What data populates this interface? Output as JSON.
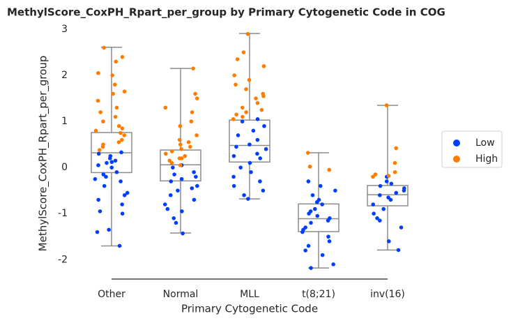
{
  "chart_data": {
    "type": "box-strip",
    "title": "MethylScore_CoxPH_Rpart_per_group by Primary Cytogenetic Code in COG",
    "x_label": "Primary Cytogenetic Code",
    "y_label": "MethylScore_CoxPH_Rpart_per_group",
    "categories": [
      "Other",
      "Normal",
      "MLL",
      "t(8;21)",
      "inv(16)"
    ],
    "ylim": [
      -2.42,
      3.05
    ],
    "yticks": [
      -2,
      -1,
      0,
      1,
      2,
      3
    ],
    "legend": "right",
    "box_color": "#8c8c8c",
    "boxes": [
      {
        "whislo": -1.7,
        "q1": -0.11,
        "med": 0.32,
        "q3": 0.76,
        "whishi": 2.61
      },
      {
        "whislo": -1.42,
        "q1": -0.29,
        "med": 0.06,
        "q3": 0.38,
        "whishi": 2.15
      },
      {
        "whislo": -0.68,
        "q1": 0.12,
        "med": 0.48,
        "q3": 1.03,
        "whishi": 2.91
      },
      {
        "whislo": -2.18,
        "q1": -1.39,
        "med": -1.11,
        "q3": -0.79,
        "whishi": 0.32
      },
      {
        "whislo": -1.79,
        "q1": -0.83,
        "med": -0.59,
        "q3": -0.39,
        "whishi": 1.35
      }
    ],
    "series": [
      {
        "name": "Low",
        "color": "#023eff",
        "values": [
          [
            -1.7,
            -1.4,
            -1.35,
            -1.0,
            -0.95,
            -0.8,
            -0.7,
            -0.55,
            -0.4,
            -0.3,
            -0.25,
            -0.15,
            -0.1,
            0,
            0.05,
            0.1,
            0.15,
            0.2,
            0.25,
            0.3,
            0.33,
            -0.6,
            -0.2,
            0.12
          ],
          [
            -1.43,
            -1.2,
            -1.1,
            -0.95,
            -0.9,
            -0.8,
            -0.7,
            -0.6,
            -0.5,
            -0.4,
            -0.3,
            -0.25,
            -0.2,
            -0.1,
            0,
            0.05,
            -0.45,
            -0.15
          ],
          [
            -0.68,
            -0.6,
            -0.5,
            -0.4,
            -0.3,
            -0.2,
            -0.1,
            0,
            0.1,
            0.2,
            0.3,
            0.4,
            0.5,
            0.6,
            0.7,
            0.8,
            0.9,
            1.0,
            1.05,
            0.25,
            0.45
          ],
          [
            -2.18,
            -2.1,
            -1.9,
            -1.8,
            -1.7,
            -1.6,
            -1.5,
            -1.4,
            -1.3,
            -1.2,
            -1.1,
            -1.0,
            -0.9,
            -0.8,
            -0.7,
            -0.6,
            -0.5,
            -0.4,
            -0.3,
            -1.15,
            -1.05,
            -1.35,
            -0.95,
            -0.75
          ],
          [
            -1.79,
            -1.6,
            -1.3,
            -1.15,
            -1.1,
            -1.0,
            -0.9,
            -0.8,
            -0.7,
            -0.6,
            -0.5,
            -0.4,
            -0.3,
            -0.2,
            -0.55,
            -0.65,
            -0.45,
            -0.35
          ]
        ]
      },
      {
        "name": "High",
        "color": "#ff7c00",
        "values": [
          [
            0.38,
            0.45,
            0.5,
            0.6,
            0.7,
            0.75,
            0.8,
            0.9,
            1.0,
            1.1,
            1.2,
            1.3,
            1.45,
            1.6,
            1.65,
            1.8,
            2.0,
            2.05,
            2.3,
            2.4,
            2.6,
            0.55,
            0.85
          ],
          [
            0.1,
            0.15,
            0.2,
            0.25,
            0.3,
            0.35,
            0.4,
            0.45,
            0.5,
            0.6,
            0.7,
            0.9,
            1.0,
            1.2,
            1.3,
            1.5,
            1.6,
            2.15,
            0.05,
            0.2,
            0.55
          ],
          [
            1.1,
            1.15,
            1.2,
            1.25,
            1.3,
            1.4,
            1.5,
            1.6,
            1.7,
            1.8,
            1.9,
            2.0,
            2.2,
            2.35,
            2.5,
            2.9,
            1.55,
            1.05
          ],
          [
            0.32,
            0.02,
            -0.05
          ],
          [
            -0.2,
            -0.15,
            -0.1,
            0.1,
            0.42,
            1.35,
            -0.18
          ]
        ]
      }
    ]
  }
}
